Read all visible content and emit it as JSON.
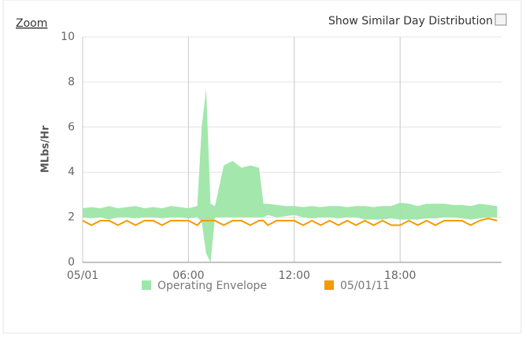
{
  "ui": {
    "zoom": "Zoom",
    "similar_day": "Show Similar Day Distribution"
  },
  "chart_data": {
    "type": "line",
    "y_label": "MLbs/Hr",
    "x": [
      0,
      0.5,
      1,
      1.5,
      2,
      2.5,
      3,
      3.5,
      4,
      4.5,
      5,
      5.5,
      6,
      6.5,
      6.75,
      7,
      7.25,
      7.5,
      8,
      8.5,
      9,
      9.5,
      10,
      10.25,
      10.5,
      11,
      11.5,
      12,
      12.5,
      13,
      13.5,
      14,
      14.5,
      15,
      15.5,
      16,
      16.5,
      17,
      17.5,
      18,
      18.5,
      19,
      19.5,
      20,
      20.5,
      21,
      21.5,
      22,
      22.5,
      23,
      23.5
    ],
    "series": [
      {
        "name": "Operating Envelope",
        "type": "arearange",
        "color": "#9ee6a8",
        "high": [
          2.4,
          2.45,
          2.4,
          2.5,
          2.4,
          2.45,
          2.5,
          2.4,
          2.45,
          2.4,
          2.5,
          2.45,
          2.4,
          2.5,
          6.0,
          7.7,
          2.6,
          2.5,
          4.3,
          4.5,
          4.2,
          4.3,
          4.2,
          2.6,
          2.6,
          2.55,
          2.5,
          2.5,
          2.45,
          2.5,
          2.45,
          2.5,
          2.5,
          2.45,
          2.5,
          2.5,
          2.45,
          2.5,
          2.5,
          2.65,
          2.6,
          2.5,
          2.6,
          2.6,
          2.6,
          2.55,
          2.55,
          2.5,
          2.6,
          2.55,
          2.5
        ],
        "low": [
          2.0,
          1.95,
          2.0,
          1.9,
          2.0,
          2.0,
          1.95,
          2.0,
          2.0,
          1.95,
          2.0,
          2.0,
          1.95,
          2.0,
          1.8,
          0.4,
          0,
          2.0,
          2.0,
          2.0,
          2.0,
          2.0,
          2.0,
          2.0,
          2.1,
          2.0,
          2.05,
          2.1,
          2.0,
          1.95,
          2.0,
          2.0,
          1.95,
          2.0,
          2.0,
          1.9,
          1.9,
          1.9,
          1.95,
          1.9,
          1.9,
          1.9,
          1.95,
          1.95,
          2.0,
          2.0,
          1.95,
          1.9,
          1.95,
          2.0,
          2.0
        ]
      },
      {
        "name": "05/01/11",
        "type": "line",
        "color": "#f59a00",
        "values": [
          1.85,
          1.65,
          1.85,
          1.85,
          1.65,
          1.85,
          1.65,
          1.85,
          1.85,
          1.65,
          1.85,
          1.85,
          1.85,
          1.65,
          1.85,
          1.85,
          1.85,
          1.85,
          1.65,
          1.85,
          1.85,
          1.65,
          1.85,
          1.85,
          1.65,
          1.85,
          1.85,
          1.85,
          1.65,
          1.85,
          1.65,
          1.85,
          1.65,
          1.85,
          1.65,
          1.85,
          1.65,
          1.85,
          1.65,
          1.65,
          1.85,
          1.65,
          1.85,
          1.65,
          1.85,
          1.85,
          1.85,
          1.65,
          1.85,
          1.95,
          1.85
        ]
      }
    ],
    "xlim": [
      0,
      23.75
    ],
    "xticks": [
      {
        "value": 0,
        "label": "05/01"
      },
      {
        "value": 6,
        "label": "06:00"
      },
      {
        "value": 12,
        "label": "12:00"
      },
      {
        "value": 18,
        "label": "18:00"
      }
    ],
    "ylim": [
      0,
      10
    ],
    "yticks": [
      0,
      2,
      4,
      6,
      8,
      10
    ],
    "grid": true
  }
}
